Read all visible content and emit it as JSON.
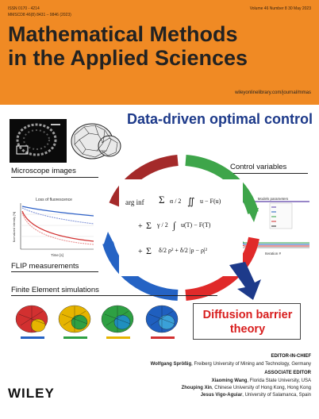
{
  "header": {
    "issn_print": "ISSN 0170 - 4214",
    "issn_online": "MMSCD8 46(8) 8431 – 9846 (2023)",
    "volume_info": "Volume 46    Number 8    30 May 2023",
    "title_line1": "Mathematical Methods",
    "title_line2": "in the Applied Sciences",
    "url": "wileyonlinelibrary.com/journal/mmas",
    "band_color": "#f08a24"
  },
  "cover": {
    "headline": "Data-driven optimal control",
    "labels": {
      "microscope": "Microscope images",
      "control": "Control variables",
      "flip": "FLIP measurements",
      "finite_element": "Finite Element simulations"
    },
    "flip_plot": {
      "title": "Loss of fluorescence",
      "x_label": "Time [s]",
      "y_label": "Normalized intensity [%]"
    },
    "control_plot": {
      "legend_title": "Models parameters",
      "x_label": "Iteration #"
    },
    "result_box": {
      "line1": "Diffusion barrier",
      "line2": "theory"
    },
    "cycle_colors": [
      "#c0392b",
      "#2ea043",
      "#1f5fbf",
      "#e02424"
    ]
  },
  "editors": {
    "chief_heading": "EDITOR-IN-CHIEF",
    "chief_name": "Wolfgang Sprößig",
    "chief_affiliation": ", Freiberg University of Mining and Technology, Germany",
    "associate_heading": "ASSOCIATE EDITOR",
    "associates": [
      {
        "name": "Xiaoming Wang",
        "affiliation": ", Florida State University, USA"
      },
      {
        "name": "Zhouping Xin",
        "affiliation": ", Chinese University of Hong Kong, Hong Kong"
      },
      {
        "name": "Jesus Vigo-Aguiar",
        "affiliation": ", University of Salamanca, Spain"
      }
    ]
  },
  "publisher": {
    "logo_text": "WILEY"
  }
}
